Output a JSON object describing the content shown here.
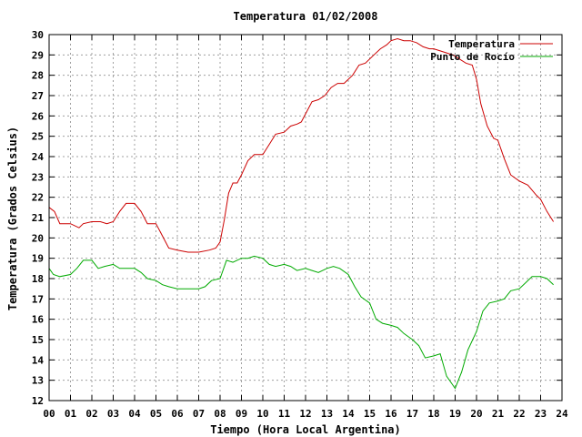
{
  "chart_data": {
    "type": "line",
    "title": "Temperatura 01/02/2008",
    "xlabel": "Tiempo (Hora Local Argentina)",
    "ylabel": "Temperatura (Grados Celsius)",
    "xlim": [
      0,
      24
    ],
    "ylim": [
      12,
      30
    ],
    "x_ticks": [
      "00",
      "01",
      "02",
      "03",
      "04",
      "05",
      "06",
      "07",
      "08",
      "09",
      "10",
      "11",
      "12",
      "13",
      "14",
      "15",
      "16",
      "17",
      "18",
      "19",
      "20",
      "21",
      "22",
      "23",
      "24"
    ],
    "y_ticks": [
      12,
      13,
      14,
      15,
      16,
      17,
      18,
      19,
      20,
      21,
      22,
      23,
      24,
      25,
      26,
      27,
      28,
      29,
      30
    ],
    "grid": true,
    "legend_position": "top-right",
    "series": [
      {
        "name": "Temperatura",
        "color": "#cc0000",
        "x": [
          0,
          0.25,
          0.5,
          1.0,
          1.4,
          1.6,
          2.0,
          2.4,
          2.7,
          3.0,
          3.3,
          3.6,
          4.0,
          4.3,
          4.6,
          5.0,
          5.3,
          5.6,
          6.0,
          6.5,
          7.0,
          7.5,
          7.8,
          8.0,
          8.2,
          8.4,
          8.6,
          8.8,
          9.0,
          9.3,
          9.6,
          10.0,
          10.3,
          10.6,
          11.0,
          11.3,
          11.6,
          11.8,
          12.0,
          12.3,
          12.6,
          12.9,
          13.2,
          13.5,
          13.8,
          14.2,
          14.5,
          14.8,
          15.2,
          15.5,
          15.8,
          16.0,
          16.3,
          16.6,
          16.9,
          17.2,
          17.5,
          17.8,
          18.0,
          18.3,
          18.6,
          18.9,
          19.2,
          19.5,
          19.8,
          20.0,
          20.2,
          20.5,
          20.8,
          21.0,
          21.3,
          21.6,
          22.0,
          22.4,
          22.8,
          23.0,
          23.3,
          23.6
        ],
        "y": [
          21.5,
          21.3,
          20.7,
          20.7,
          20.5,
          20.7,
          20.8,
          20.8,
          20.7,
          20.8,
          21.3,
          21.7,
          21.7,
          21.3,
          20.7,
          20.7,
          20.1,
          19.5,
          19.4,
          19.3,
          19.3,
          19.4,
          19.5,
          19.8,
          20.9,
          22.2,
          22.7,
          22.7,
          23.1,
          23.8,
          24.1,
          24.1,
          24.6,
          25.1,
          25.2,
          25.5,
          25.6,
          25.7,
          26.1,
          26.7,
          26.8,
          27.0,
          27.4,
          27.6,
          27.6,
          28.0,
          28.5,
          28.6,
          29.0,
          29.3,
          29.5,
          29.7,
          29.8,
          29.7,
          29.7,
          29.6,
          29.4,
          29.3,
          29.3,
          29.2,
          29.1,
          29.0,
          28.8,
          28.6,
          28.5,
          27.8,
          26.6,
          25.5,
          24.9,
          24.8,
          23.9,
          23.1,
          22.8,
          22.6,
          22.1,
          21.9,
          21.3,
          20.8
        ]
      },
      {
        "name": "Punto de Rocío",
        "color": "#00aa00",
        "x": [
          0,
          0.2,
          0.5,
          1.0,
          1.3,
          1.6,
          2.0,
          2.3,
          2.6,
          3.0,
          3.3,
          3.6,
          4.0,
          4.3,
          4.6,
          5.0,
          5.3,
          5.6,
          6.0,
          6.5,
          7.0,
          7.3,
          7.6,
          8.0,
          8.3,
          8.6,
          9.0,
          9.3,
          9.6,
          10.0,
          10.3,
          10.6,
          11.0,
          11.3,
          11.6,
          12.0,
          12.3,
          12.6,
          13.0,
          13.3,
          13.6,
          14.0,
          14.3,
          14.6,
          15.0,
          15.3,
          15.6,
          16.0,
          16.3,
          16.6,
          17.0,
          17.3,
          17.6,
          18.0,
          18.3,
          18.6,
          19.0,
          19.3,
          19.6,
          20.0,
          20.3,
          20.6,
          21.0,
          21.3,
          21.6,
          22.0,
          22.3,
          22.6,
          23.0,
          23.3,
          23.6
        ],
        "y": [
          18.5,
          18.2,
          18.1,
          18.2,
          18.5,
          18.9,
          18.9,
          18.5,
          18.6,
          18.7,
          18.5,
          18.5,
          18.5,
          18.3,
          18.0,
          17.9,
          17.7,
          17.6,
          17.5,
          17.5,
          17.5,
          17.6,
          17.9,
          18.0,
          18.9,
          18.8,
          19.0,
          19.0,
          19.1,
          19.0,
          18.7,
          18.6,
          18.7,
          18.6,
          18.4,
          18.5,
          18.4,
          18.3,
          18.5,
          18.6,
          18.5,
          18.2,
          17.6,
          17.1,
          16.8,
          16.0,
          15.8,
          15.7,
          15.6,
          15.3,
          15.0,
          14.7,
          14.1,
          14.2,
          14.3,
          13.2,
          12.6,
          13.4,
          14.5,
          15.4,
          16.4,
          16.8,
          16.9,
          17.0,
          17.4,
          17.5,
          17.8,
          18.1,
          18.1,
          18.0,
          17.7
        ]
      }
    ]
  }
}
